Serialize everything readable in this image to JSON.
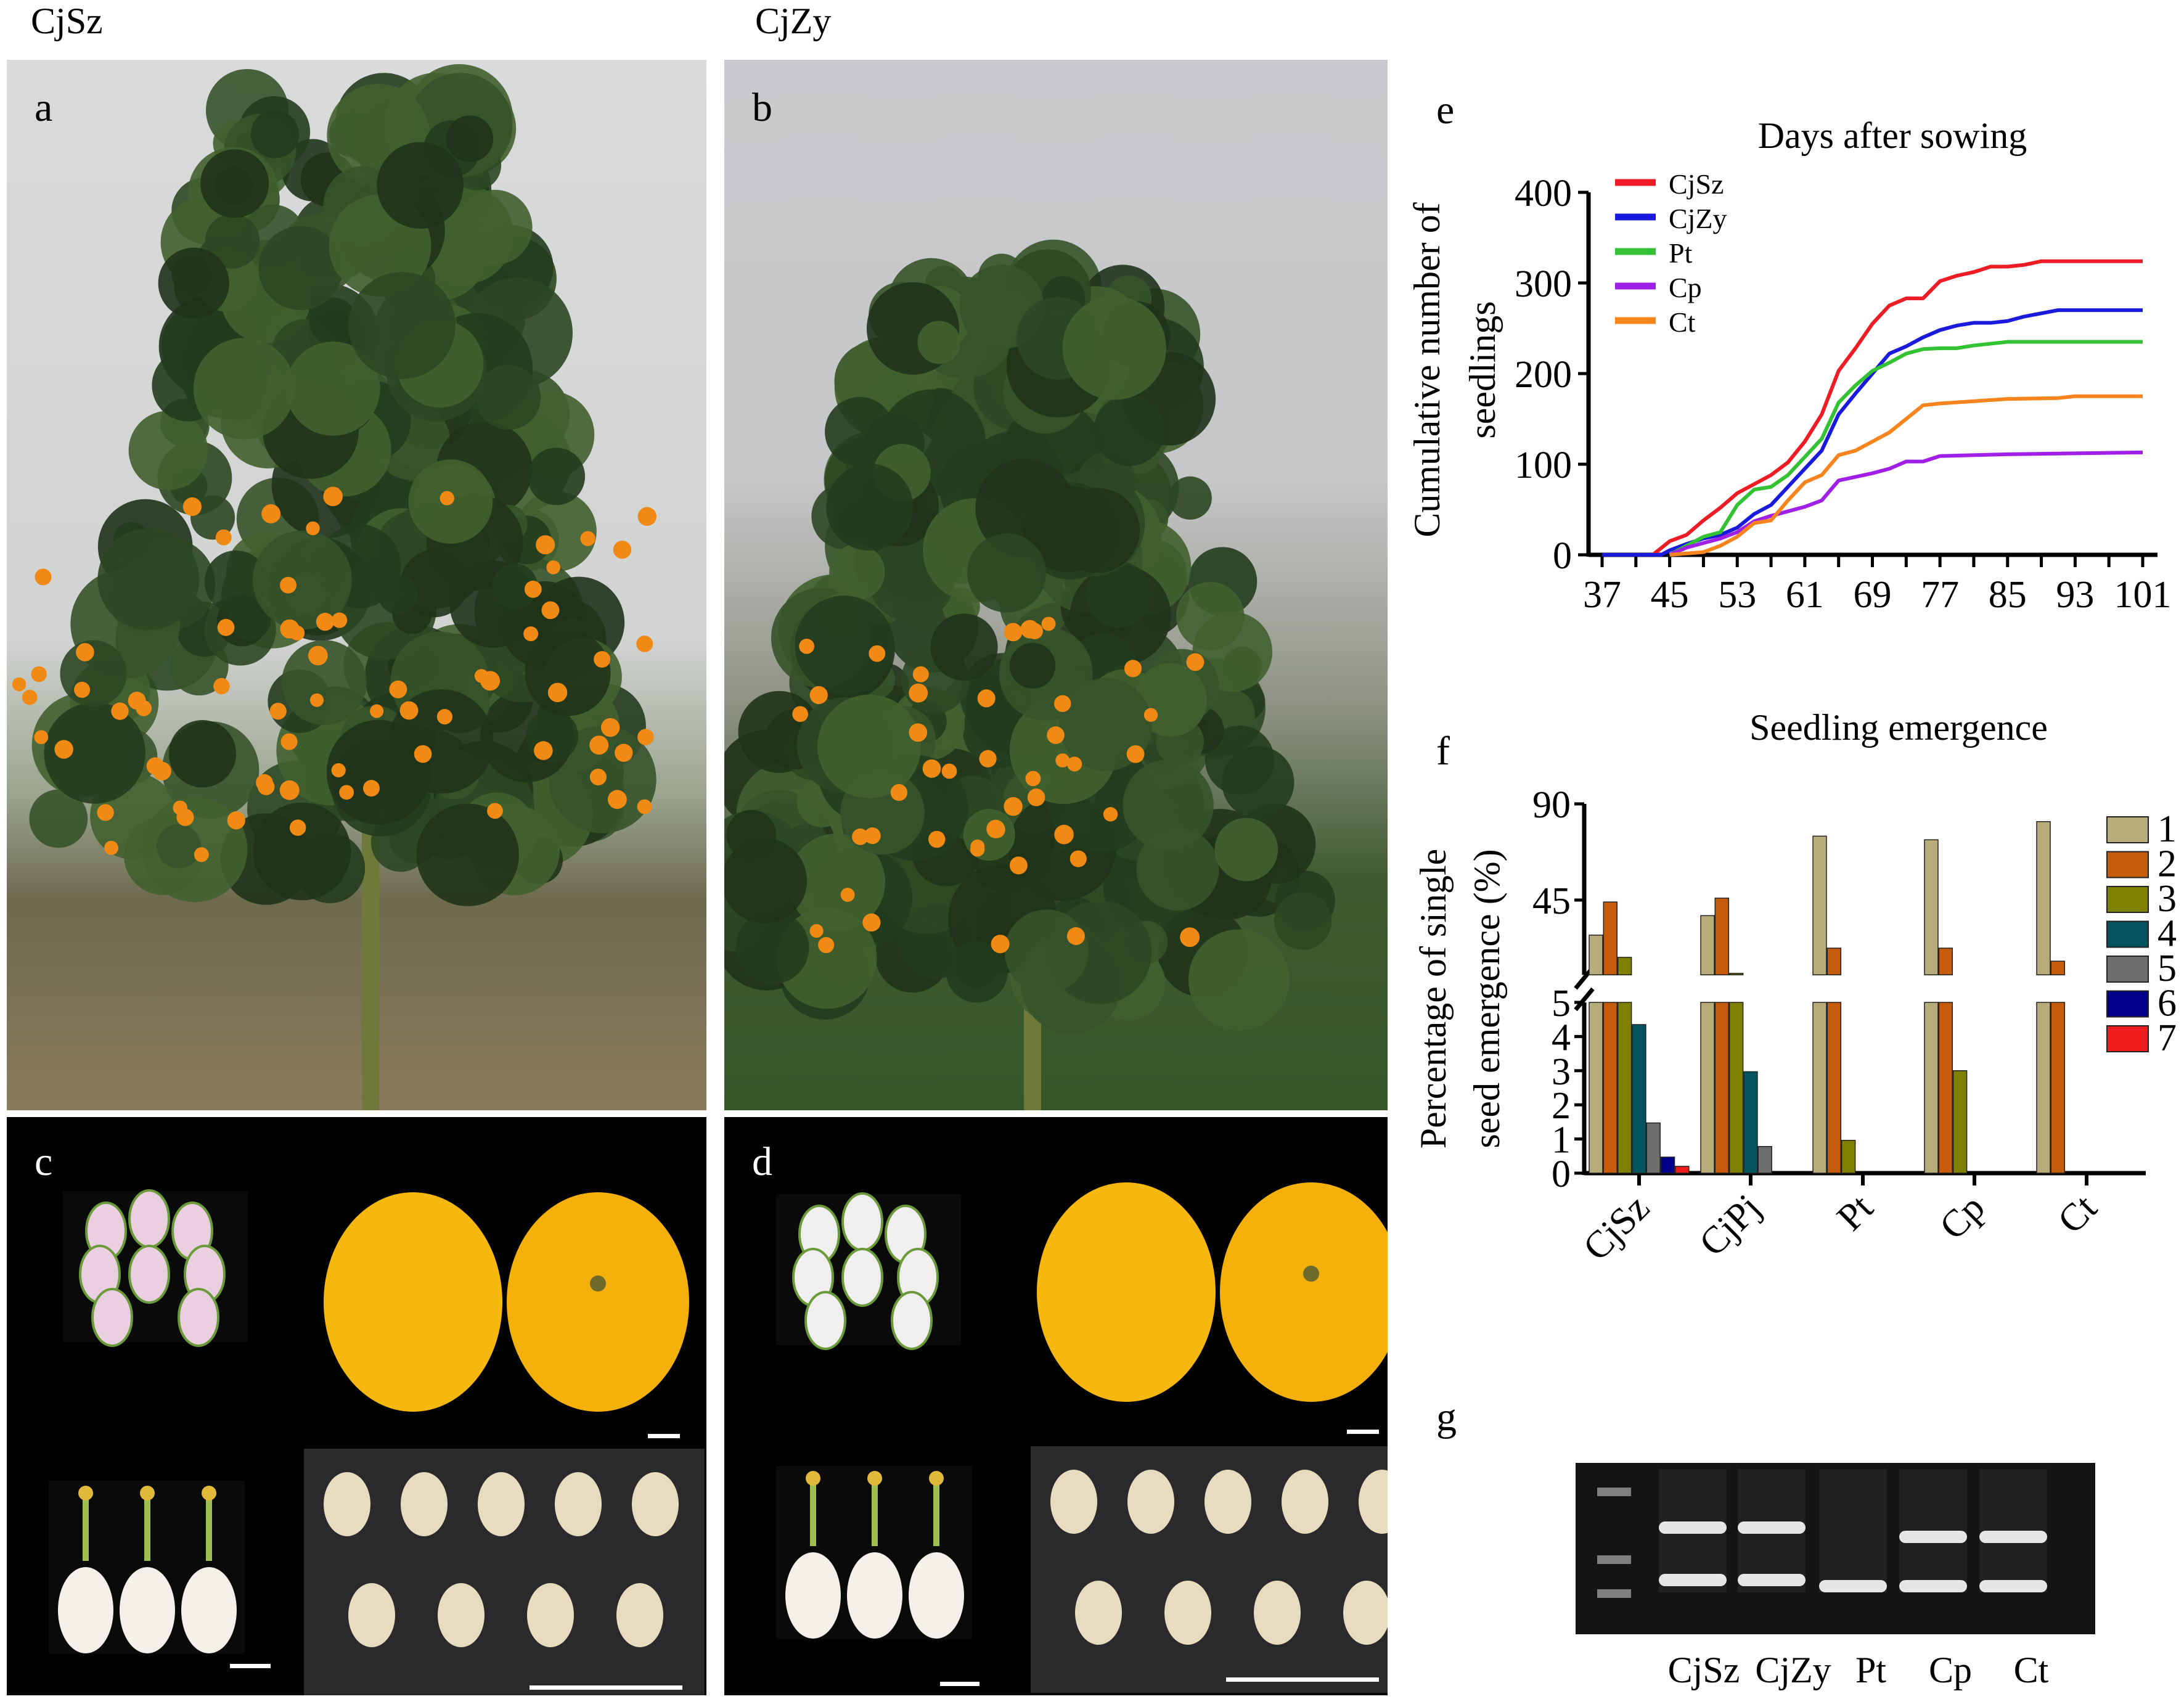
{
  "figure": {
    "column_labels": [
      "CjSz",
      "CjZy"
    ],
    "panel_letters": {
      "a": "a",
      "b": "b",
      "c": "c",
      "d": "d",
      "e": "e",
      "f": "f",
      "g": "g"
    },
    "colors": {
      "fruit": "#f08a14",
      "foliage": "#2f4a25",
      "sky": "#d6d8d8",
      "gel_background": "#141414"
    }
  },
  "gel": {
    "lane_labels": [
      "CjSz",
      "CjZy",
      "Pt",
      "Cp",
      "Ct"
    ]
  },
  "chart_data": [
    {
      "type": "line",
      "title": "Days after sowing",
      "ylabel": "Cumulative number of seedlings",
      "ylabel_lines": [
        "Cumulative number of",
        "seedlings"
      ],
      "xlabel": "",
      "xlim": [
        37,
        101
      ],
      "ylim": [
        0,
        400
      ],
      "x_ticks": [
        37,
        45,
        53,
        61,
        69,
        77,
        85,
        93,
        101
      ],
      "y_ticks": [
        0,
        100,
        200,
        300,
        400
      ],
      "legend_placement": "top-left",
      "grid": false,
      "series": [
        {
          "name": "CjSz",
          "color": "#ee1c24",
          "x": [
            37,
            43,
            45,
            47,
            49,
            51,
            53,
            55,
            57,
            59,
            61,
            63,
            65,
            67,
            69,
            71,
            73,
            75,
            77,
            79,
            81,
            83,
            85,
            87,
            89,
            101
          ],
          "y": [
            0,
            0,
            15,
            22,
            38,
            52,
            68,
            78,
            88,
            102,
            125,
            155,
            203,
            228,
            255,
            275,
            283,
            283,
            302,
            308,
            312,
            318,
            318,
            320,
            324,
            324
          ]
        },
        {
          "name": "CjZy",
          "color": "#1a1adc",
          "x": [
            37,
            44,
            45,
            47,
            49,
            51,
            53,
            55,
            57,
            59,
            61,
            63,
            65,
            67,
            69,
            71,
            73,
            75,
            77,
            79,
            81,
            83,
            85,
            87,
            91,
            101
          ],
          "y": [
            0,
            0,
            5,
            12,
            18,
            22,
            30,
            45,
            55,
            75,
            95,
            115,
            155,
            178,
            200,
            222,
            230,
            240,
            248,
            253,
            256,
            256,
            258,
            263,
            270,
            270
          ]
        },
        {
          "name": "Pt",
          "color": "#33c233",
          "x": [
            45,
            47,
            49,
            51,
            53,
            55,
            57,
            59,
            61,
            63,
            65,
            67,
            69,
            71,
            73,
            75,
            77,
            79,
            81,
            85,
            101
          ],
          "y": [
            0,
            10,
            20,
            25,
            55,
            72,
            75,
            88,
            108,
            128,
            168,
            187,
            203,
            212,
            222,
            227,
            228,
            228,
            231,
            235,
            235
          ]
        },
        {
          "name": "Cp",
          "color": "#a020e8",
          "x": [
            45,
            47,
            49,
            51,
            53,
            55,
            57,
            59,
            61,
            63,
            65,
            67,
            69,
            71,
            73,
            75,
            77,
            85,
            101
          ],
          "y": [
            0,
            8,
            13,
            18,
            25,
            37,
            43,
            48,
            53,
            60,
            82,
            86,
            90,
            95,
            103,
            103,
            109,
            111,
            113
          ]
        },
        {
          "name": "Ct",
          "color": "#f7841c",
          "x": [
            45,
            49,
            51,
            53,
            55,
            57,
            59,
            61,
            63,
            65,
            67,
            69,
            71,
            73,
            75,
            77,
            85,
            91,
            93,
            101
          ],
          "y": [
            0,
            3,
            10,
            20,
            35,
            38,
            60,
            80,
            88,
            110,
            115,
            125,
            135,
            150,
            165,
            167,
            172,
            173,
            175,
            175
          ]
        }
      ]
    },
    {
      "type": "bar",
      "title": "Seedling emergence",
      "ylabel": "Percentage of single seed emergence (%)",
      "ylabel_lines": [
        "Percentage of single",
        "seed emergence (%)"
      ],
      "xlabel": "",
      "categories": [
        "CjSz",
        "CjPj",
        "Pt",
        "Cp",
        "Ct"
      ],
      "y_axis_break": true,
      "lower_segment": {
        "ylim": [
          0,
          5
        ],
        "ticks": [
          0,
          1,
          2,
          3,
          4,
          5
        ]
      },
      "upper_segment": {
        "ylim": [
          10,
          90
        ],
        "ticks": [
          45,
          90
        ]
      },
      "legend_placement": "right",
      "grid": false,
      "series": [
        {
          "name": "1",
          "color": "#b8ad7a",
          "values": [
            28.6,
            37.7,
            74.9,
            73.2,
            81.7
          ]
        },
        {
          "name": "2",
          "color": "#c45c0c",
          "values": [
            44.1,
            45.9,
            22.5,
            22.5,
            16.4
          ]
        },
        {
          "name": "3",
          "color": "#808000",
          "values": [
            18.2,
            10.7,
            0.96,
            3.0,
            0
          ]
        },
        {
          "name": "4",
          "color": "#045460",
          "values": [
            4.35,
            2.97,
            0,
            0,
            0
          ]
        },
        {
          "name": "5",
          "color": "#6e6e6e",
          "values": [
            1.47,
            0.78,
            0,
            0,
            0
          ]
        },
        {
          "name": "6",
          "color": "#00008b",
          "values": [
            0.47,
            0,
            0,
            0,
            0
          ]
        },
        {
          "name": "7",
          "color": "#ee1c1c",
          "values": [
            0.2,
            0,
            0,
            0,
            0
          ]
        }
      ]
    }
  ]
}
